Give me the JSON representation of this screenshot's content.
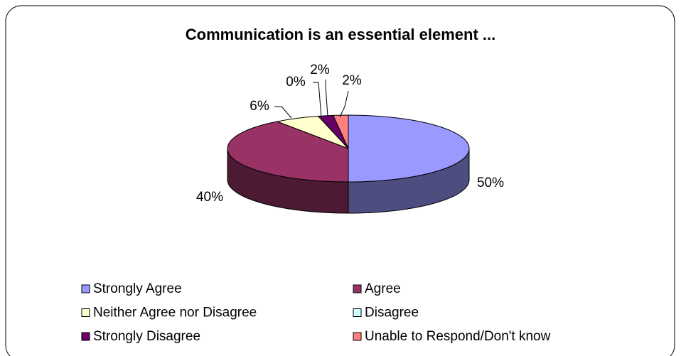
{
  "chart_data": {
    "type": "pie3d",
    "title": "Communication is an essential element ...",
    "categories": [
      "Strongly Agree",
      "Agree",
      "Neither Agree nor Disagree",
      "Disagree",
      "Strongly Disagree",
      "Unable to Respond/Don't know"
    ],
    "values": [
      50,
      40,
      6,
      0,
      2,
      2
    ],
    "value_labels": [
      "50%",
      "40%",
      "6%",
      "0%",
      "2%",
      "2%"
    ],
    "colors": [
      "#9999ff",
      "#993366",
      "#ffffcc",
      "#ccffff",
      "#660066",
      "#ff8080"
    ]
  }
}
